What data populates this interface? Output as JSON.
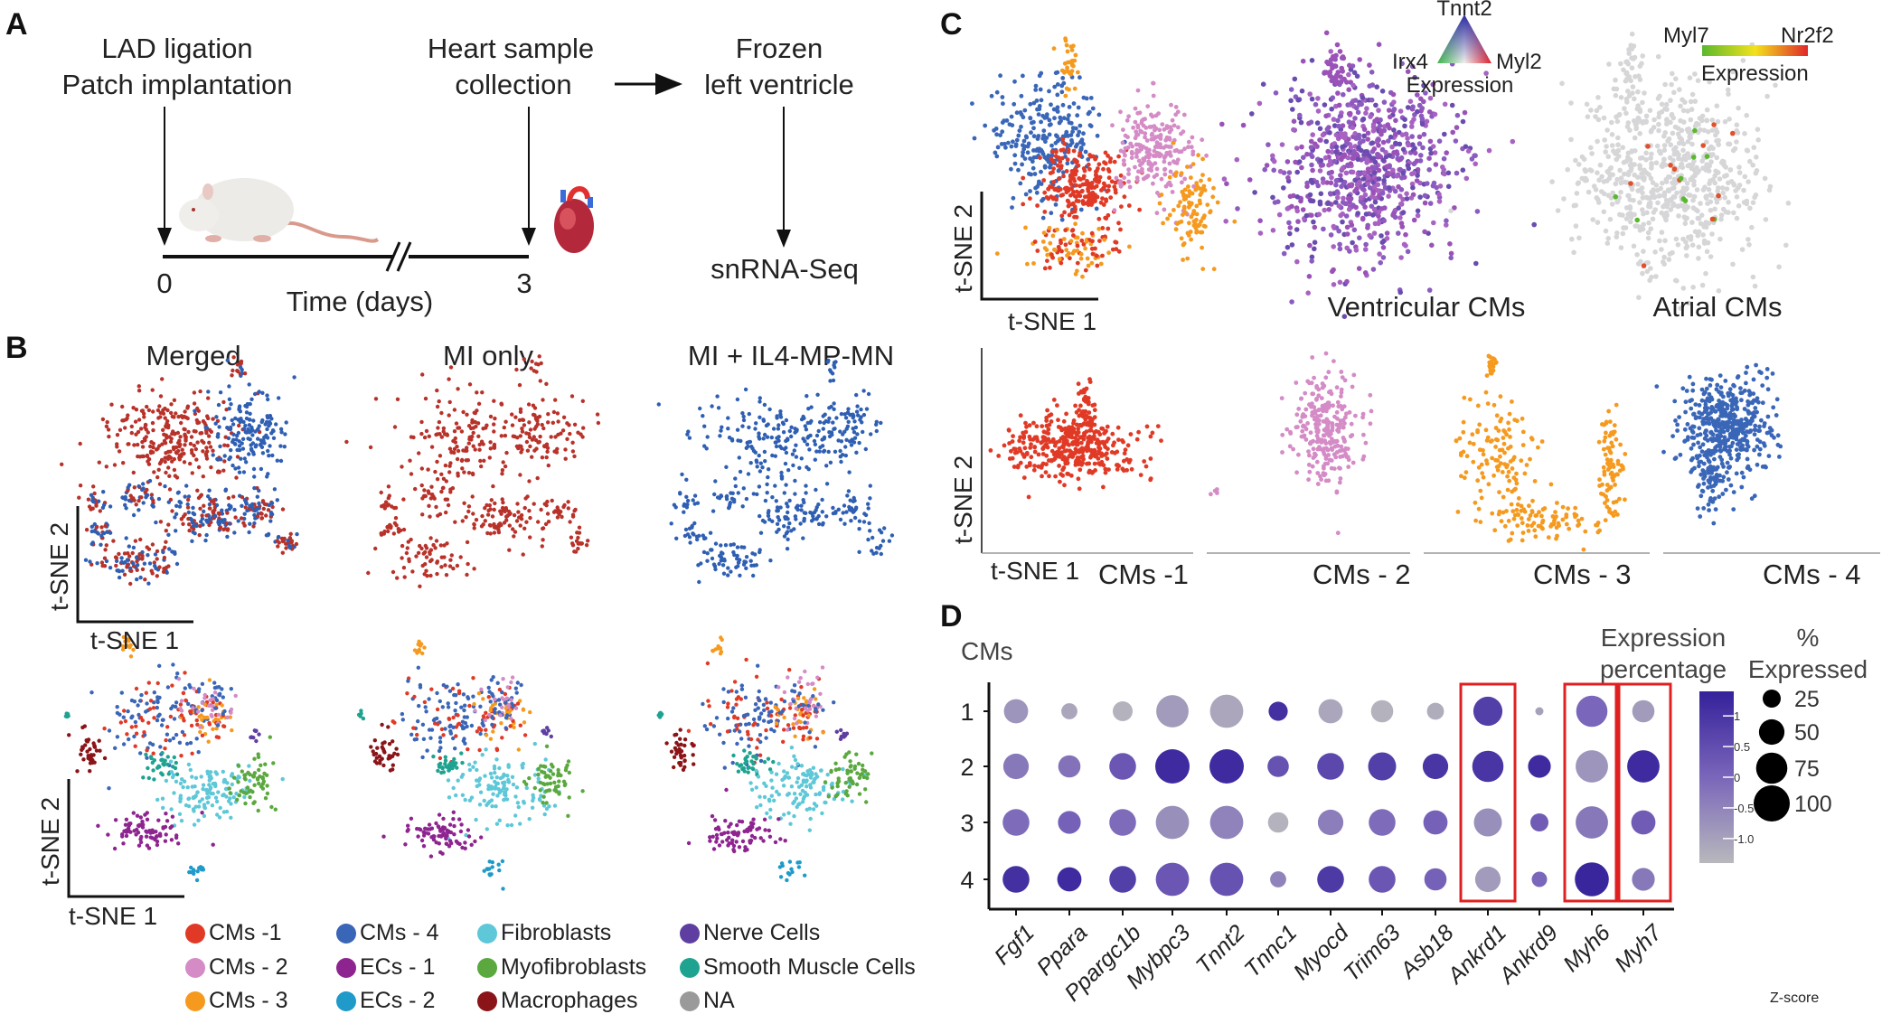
{
  "panels": {
    "a": "A",
    "b": "B",
    "c": "C",
    "d": "D"
  },
  "panel_a": {
    "step1_line1": "LAD ligation",
    "step1_line2": "Patch implantation",
    "step2_line1": "Heart sample",
    "step2_line2": "collection",
    "step3_line1": "Frozen",
    "step3_line2": "left ventricle",
    "step4": "snRNA-Seq",
    "tick_start": "0",
    "tick_end": "3",
    "axis_label": "Time (days)",
    "icons": [
      "mouse-illustration",
      "heart-illustration"
    ]
  },
  "panel_b": {
    "titles": [
      "Merged",
      "MI only",
      "MI + IL4-MP-MN"
    ],
    "xlabel": "t-SNE 1",
    "ylabel": "t-SNE 2",
    "legend": [
      {
        "label": "CMs -1",
        "color": "#e03a26"
      },
      {
        "label": "CMs - 2",
        "color": "#d48bc6"
      },
      {
        "label": "CMs - 3",
        "color": "#f59a1f"
      },
      {
        "label": "CMs - 4",
        "color": "#3a66b8"
      },
      {
        "label": "ECs - 1",
        "color": "#8e2490"
      },
      {
        "label": "ECs - 2",
        "color": "#1f9ac9"
      },
      {
        "label": "Fibroblasts",
        "color": "#5ec8d8"
      },
      {
        "label": "Myofibroblasts",
        "color": "#5aa83e"
      },
      {
        "label": "Macrophages",
        "color": "#8a1418"
      },
      {
        "label": "Nerve Cells",
        "color": "#5e3ea0"
      },
      {
        "label": "Smooth Muscle Cells",
        "color": "#1fa391"
      },
      {
        "label": "NA",
        "color": "#9a9a9a"
      }
    ],
    "condition_colors": {
      "MI only": "#b8322a",
      "MI + IL4-MP-MN": "#2f5fb3"
    }
  },
  "panel_c": {
    "xlabel": "t-SNE 1",
    "ylabel": "t-SNE 2",
    "ventricular_label": "Ventricular CMs",
    "atrial_label": "Atrial CMs",
    "triangle_legend": {
      "top": "Tnnt2",
      "left": "Irx4",
      "right": "Myl2",
      "caption": "Expression"
    },
    "gradient_legend": {
      "low": "Myl7",
      "high": "Nr2f2",
      "caption": "Expression",
      "low_color": "#5ab82e",
      "mid_color": "#f2e21c",
      "high_color": "#e0282a"
    },
    "subclusters": [
      "CMs -1",
      "CMs - 2",
      "CMs - 3",
      "CMs - 4"
    ]
  },
  "chart_data": [
    {
      "type": "scatter",
      "panel": "D",
      "kind": "dot plot",
      "ylabel": "CMs",
      "categories_y": [
        "1",
        "2",
        "3",
        "4"
      ],
      "categories_x": [
        "Fgf1",
        "Ppara",
        "Ppargc1b",
        "Mybpc3",
        "Tnnt2",
        "Tnnc1",
        "Myocd",
        "Trim63",
        "Asb18",
        "Ankrd1",
        "Ankrd9",
        "Myh6",
        "Myh7"
      ],
      "highlighted": [
        "Ankrd1",
        "Myh6",
        "Myh7"
      ],
      "highlight_color": "#e02020",
      "size_legend_title": "% Expressed",
      "size_legend": [
        25,
        50,
        75,
        100
      ],
      "color_legend_title": "Expression percentage",
      "color_legend_caption": "Z-score",
      "color_ticks": [
        "1",
        "0.5",
        "0",
        "-0.5",
        "-1.0"
      ],
      "color_range": [
        -1.4,
        1.4
      ],
      "colors": {
        "low": "#b8b8bc",
        "mid": "#7a66ba",
        "high": "#35219a"
      },
      "pct_expressed": [
        [
          45,
          20,
          30,
          80,
          85,
          28,
          45,
          38,
          22,
          65,
          5,
          75,
          38
        ],
        [
          50,
          38,
          55,
          90,
          90,
          35,
          55,
          60,
          50,
          75,
          40,
          80,
          80
        ],
        [
          55,
          40,
          55,
          85,
          85,
          32,
          50,
          55,
          45,
          60,
          25,
          80,
          45
        ],
        [
          55,
          45,
          55,
          85,
          85,
          20,
          55,
          55,
          38,
          50,
          18,
          88,
          40
        ]
      ],
      "zscore": [
        [
          -0.8,
          -1.1,
          -1.3,
          -0.9,
          -1.1,
          1.1,
          -1.1,
          -1.3,
          -1.2,
          0.8,
          -1.0,
          0.0,
          -0.9
        ],
        [
          -0.3,
          -0.2,
          0.3,
          1.2,
          1.2,
          0.4,
          0.6,
          0.8,
          1.0,
          1.0,
          1.2,
          -0.8,
          1.2
        ],
        [
          -0.1,
          0.1,
          -0.1,
          -0.7,
          -0.5,
          -1.3,
          -0.4,
          -0.1,
          0.1,
          -0.7,
          0.2,
          -0.3,
          0.2
        ],
        [
          1.1,
          1.2,
          0.8,
          0.3,
          0.4,
          -0.5,
          0.9,
          0.3,
          0.1,
          -0.9,
          0.0,
          1.3,
          -0.3
        ]
      ]
    }
  ]
}
